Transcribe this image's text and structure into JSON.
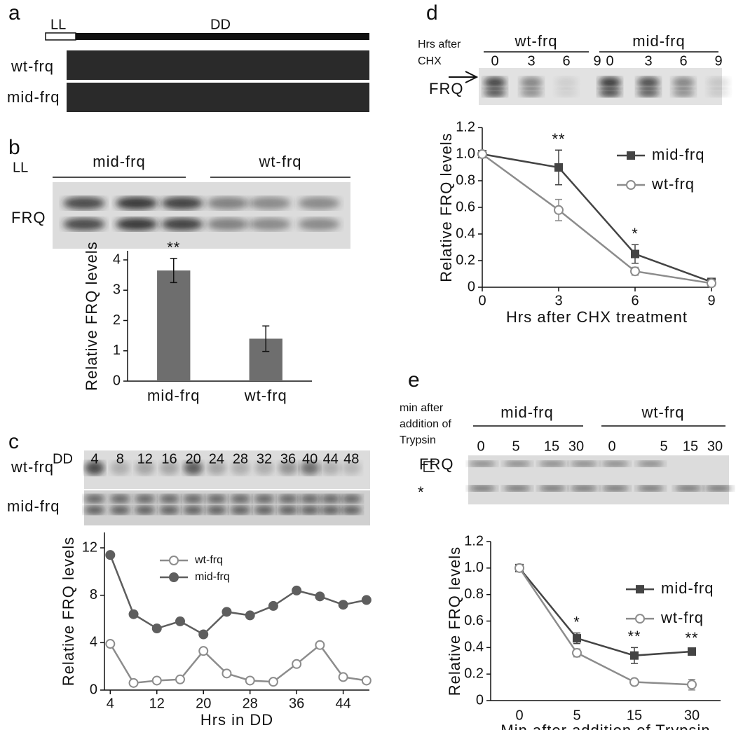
{
  "panels": {
    "a": {
      "label": "a",
      "light": "LL",
      "dark": "DD",
      "rows": [
        "wt-frq",
        "mid-frq"
      ]
    },
    "b": {
      "label": "b",
      "condition": "LL",
      "groups": [
        "mid-frq",
        "wt-frq"
      ],
      "band": "FRQ"
    },
    "c": {
      "label": "c",
      "condition": "DD",
      "lanes": [
        "4",
        "8",
        "12",
        "16",
        "20",
        "24",
        "28",
        "32",
        "36",
        "40",
        "44",
        "48"
      ],
      "rows": [
        "wt-frq",
        "mid-frq"
      ]
    },
    "d": {
      "label": "d",
      "header": [
        "Hrs after",
        "CHX"
      ],
      "groups": [
        "wt-frq",
        "mid-frq"
      ],
      "lanes": [
        "0",
        "3",
        "6",
        "9",
        "0",
        "3",
        "6",
        "9"
      ],
      "band": "FRQ"
    },
    "e": {
      "label": "e",
      "header": [
        "min after",
        "addition of",
        "Trypsin"
      ],
      "groups": [
        "mid-frq",
        "wt-frq"
      ],
      "lanes": [
        "0",
        "5",
        "15",
        "30",
        "0",
        "5",
        "15",
        "30"
      ],
      "band": "FRQ",
      "marker": "*"
    }
  },
  "chart_data": [
    {
      "type": "bar",
      "categories": [
        "mid-frq",
        "wt-frq"
      ],
      "values": [
        3.65,
        1.4
      ],
      "errors": [
        0.4,
        0.42
      ],
      "color": "#6e6e6e",
      "ylim": [
        0,
        4.3
      ],
      "yticks": [
        0,
        1,
        2,
        3,
        4
      ],
      "ylabel": "Relative FRQ levels",
      "annotations": [
        "**",
        null
      ]
    },
    {
      "type": "line",
      "x": [
        4,
        8,
        12,
        16,
        20,
        24,
        28,
        32,
        36,
        40,
        44,
        48
      ],
      "xlim": [
        3,
        48.5
      ],
      "xticks": [
        4,
        12,
        20,
        28,
        36,
        44
      ],
      "ylim": [
        0,
        13.3
      ],
      "yticks": [
        0,
        4,
        8,
        12
      ],
      "xlabel": "Hrs in DD",
      "ylabel": "Relative FRQ levels",
      "legend": "upper center",
      "series": [
        {
          "name": "wt-frq",
          "color": "#8c8c8c",
          "marker": "open circle",
          "values": [
            3.9,
            0.6,
            0.8,
            0.9,
            3.3,
            1.4,
            0.8,
            0.7,
            2.2,
            3.8,
            1.1,
            0.8
          ]
        },
        {
          "name": "mid-frq",
          "color": "#5e5e5e",
          "marker": "filled circle",
          "values": [
            11.4,
            6.4,
            5.2,
            5.8,
            4.7,
            6.6,
            6.3,
            7.1,
            8.4,
            7.9,
            7.2,
            7.6
          ]
        }
      ]
    },
    {
      "type": "line",
      "x": [
        0,
        3,
        6,
        9
      ],
      "xlim": [
        0,
        9
      ],
      "xticks": [
        0,
        3,
        6,
        9
      ],
      "ylim": [
        0,
        1.2
      ],
      "yticks": [
        0,
        0.2,
        0.4,
        0.6,
        0.8,
        {
          "value": 1,
          "label": "1.0"
        },
        1.2
      ],
      "xlabel": "Hrs after CHX treatment",
      "ylabel": "Relative FRQ levels",
      "legend": "upper right",
      "annotations": [
        null,
        "**",
        "*",
        null
      ],
      "series": [
        {
          "name": "mid-frq",
          "color": "#444444",
          "marker": "square",
          "values": [
            1,
            0.9,
            0.25,
            0.04
          ],
          "errors": [
            0,
            0.13,
            0.07,
            0.02
          ]
        },
        {
          "name": "wt-frq",
          "color": "#8c8c8c",
          "marker": "open circle",
          "values": [
            1,
            0.58,
            0.12,
            0.03
          ],
          "errors": [
            0,
            0.08,
            0.03,
            0
          ]
        }
      ]
    },
    {
      "type": "line",
      "categories": [
        "0",
        "5",
        "15",
        "30"
      ],
      "ylim": [
        0,
        1.2
      ],
      "yticks": [
        0,
        0.2,
        0.4,
        0.6,
        0.8,
        {
          "value": 1,
          "label": "1.0"
        },
        1.2
      ],
      "xlabel": "Min after addition of Trypsin",
      "ylabel": "Relative FRQ levels",
      "legend": "right",
      "annotations": [
        null,
        "*",
        "**",
        "**"
      ],
      "series": [
        {
          "name": "mid-frq",
          "color": "#444444",
          "marker": "square",
          "values": [
            1.0,
            0.47,
            0.34,
            0.37
          ],
          "errors": [
            0.02,
            0.04,
            0.06,
            0.02
          ]
        },
        {
          "name": "wt-frq",
          "color": "#8c8c8c",
          "marker": "open circle",
          "values": [
            1.0,
            0.36,
            0.14,
            0.12
          ],
          "errors": [
            0.02,
            0.03,
            0.02,
            0.04
          ]
        }
      ]
    }
  ]
}
